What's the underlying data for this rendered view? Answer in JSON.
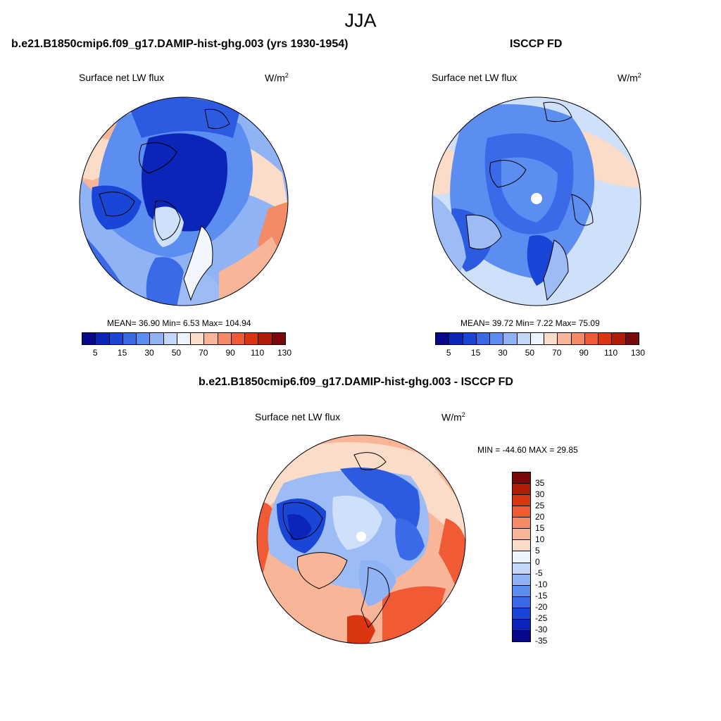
{
  "figure": {
    "title": "JJA"
  },
  "panel_left": {
    "title": "b.e21.B1850cmip6.f09_g17.DAMIP-hist-ghg.003 (yrs 1930-1954)",
    "variable": "Surface net LW flux",
    "units": "W/m",
    "units_sup": "2",
    "stats": "MEAN=  36.90  Min=   6.53  Max= 104.94"
  },
  "panel_right": {
    "title": "ISCCP FD",
    "variable": "Surface net LW flux",
    "units": "W/m",
    "units_sup": "2",
    "stats": "MEAN=  39.72  Min=   7.22  Max=  75.09"
  },
  "panel_diff": {
    "title": "b.e21.B1850cmip6.f09_g17.DAMIP-hist-ghg.003 - ISCCP FD",
    "variable": "Surface net LW flux",
    "units": "W/m",
    "units_sup": "2",
    "stats": "MIN = -44.60 MAX =  29.85"
  },
  "colorbar_abs": {
    "colors": [
      "#08088a",
      "#0a25b8",
      "#1a46d8",
      "#3a6ae8",
      "#5b8ef0",
      "#8fb3f5",
      "#c3d8f8",
      "#eef4fb",
      "#fbdcc8",
      "#f8b598",
      "#f58a66",
      "#f05a35",
      "#dc3512",
      "#b01c06",
      "#7a0a0a"
    ],
    "ticks": [
      "5",
      "15",
      "30",
      "50",
      "70",
      "90",
      "110",
      "130"
    ]
  },
  "colorbar_diff": {
    "colors": [
      "#7a0a0a",
      "#b01c06",
      "#dc3512",
      "#f05a35",
      "#f58a66",
      "#f8b598",
      "#fbdcc8",
      "#eef4fb",
      "#c3d8f8",
      "#8fb3f5",
      "#5b8ef0",
      "#3a6ae8",
      "#1a46d8",
      "#0a25b8",
      "#08088a"
    ],
    "ticks": [
      "35",
      "30",
      "25",
      "20",
      "15",
      "10",
      "5",
      "0",
      "-5",
      "-10",
      "-15",
      "-20",
      "-25",
      "-30",
      "-35"
    ]
  },
  "map_palette": {
    "deep_blue": "#0a25b8",
    "blue": "#2c5ae0",
    "mid_blue": "#5b8ef0",
    "light_blue": "#9dbcf5",
    "pale_blue": "#cfe0fa",
    "white": "#f3f7fd",
    "pale_red": "#fbdcc8",
    "light_red": "#f8b598",
    "red": "#f05a35",
    "dark_red": "#b01c06"
  }
}
